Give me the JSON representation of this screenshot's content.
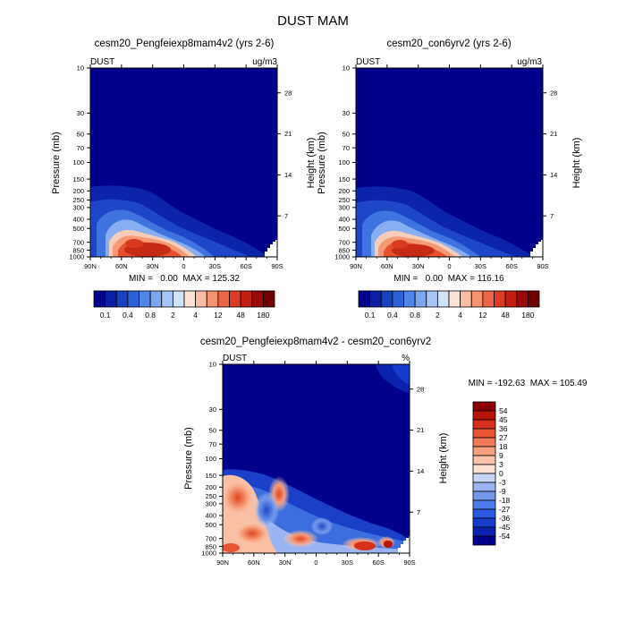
{
  "figure": {
    "title": "DUST MAM"
  },
  "chart_data": [
    {
      "type": "heatmap",
      "title": "cesm20_Pengfeiexp8mam4v2 (yrs 2-6)",
      "left_label": "DUST",
      "right_label": "ug/m3",
      "xlabel": "",
      "ylabel": "Pressure (mb)",
      "ylabel_right": "Height (km)",
      "x_ticks": [
        "90N",
        "60N",
        "30N",
        "0",
        "30S",
        "60S",
        "90S"
      ],
      "y_ticks": [
        "10",
        "30",
        "50",
        "70",
        "100",
        "150",
        "200",
        "250",
        "300",
        "400",
        "500",
        "700",
        "850",
        "1000"
      ],
      "y_ticks_right": [
        "28",
        "21",
        "14",
        "7"
      ],
      "ylim": [
        1000,
        10
      ],
      "stats": "MIN =   0.00  MAX = 125.32"
    },
    {
      "type": "heatmap",
      "title": "cesm20_con6yrv2 (yrs 2-6)",
      "left_label": "DUST",
      "right_label": "ug/m3",
      "xlabel": "",
      "ylabel": "Pressure (mb)",
      "ylabel_right": "Height (km)",
      "x_ticks": [
        "90N",
        "60N",
        "30N",
        "0",
        "30S",
        "60S",
        "90S"
      ],
      "y_ticks": [
        "10",
        "30",
        "50",
        "70",
        "100",
        "150",
        "200",
        "250",
        "300",
        "400",
        "500",
        "700",
        "850",
        "1000"
      ],
      "y_ticks_right": [
        "28",
        "21",
        "14",
        "7"
      ],
      "ylim": [
        1000,
        10
      ],
      "stats": "MIN =   0.00  MAX = 116.16"
    },
    {
      "type": "heatmap",
      "title": "cesm20_Pengfeiexp8mam4v2 - cesm20_con6yrv2",
      "left_label": "DUST",
      "right_label": "%",
      "xlabel": "",
      "ylabel": "Pressure (mb)",
      "ylabel_right": "Height (km)",
      "x_ticks": [
        "90N",
        "60N",
        "30N",
        "0",
        "30S",
        "60S",
        "90S"
      ],
      "y_ticks": [
        "10",
        "30",
        "50",
        "70",
        "100",
        "150",
        "200",
        "250",
        "300",
        "400",
        "500",
        "700",
        "850",
        "1000"
      ],
      "y_ticks_right": [
        "28",
        "21",
        "14",
        "7"
      ],
      "ylim": [
        1000,
        10
      ],
      "stats": "MIN = -192.63  MAX = 105.49"
    }
  ],
  "colorbar_top": {
    "colors": [
      "#00008b",
      "#0a1fa5",
      "#1742c4",
      "#2a63d8",
      "#4f86e8",
      "#7aa7f0",
      "#a6c6f5",
      "#d0e3f9",
      "#fde3d6",
      "#f9bda3",
      "#f49372",
      "#ee6545",
      "#de3b22",
      "#c01f12",
      "#9a0a06",
      "#700000"
    ],
    "labels": [
      "0.1",
      "0.4",
      "0.8",
      "2",
      "4",
      "12",
      "48",
      "180"
    ],
    "values": [
      0.05,
      0.1,
      0.2,
      0.4,
      0.6,
      0.8,
      1,
      2,
      3,
      4,
      8,
      12,
      24,
      48,
      96,
      180
    ]
  },
  "colorbar_diff": {
    "colors": [
      "#00008b",
      "#0a22ad",
      "#163ccc",
      "#2b5ae2",
      "#4d7be9",
      "#7398ee",
      "#9ab4f3",
      "#c5d6f7",
      "#fde1d2",
      "#fac2a8",
      "#f7a07d",
      "#f27b57",
      "#e95433",
      "#d6301c",
      "#b71508",
      "#8b0000"
    ],
    "labels": [
      "-54",
      "-45",
      "-36",
      "-27",
      "-18",
      "-9",
      "-3",
      "0",
      "3",
      "9",
      "18",
      "27",
      "36",
      "45",
      "54"
    ],
    "values": [
      -54,
      -45,
      -36,
      -27,
      -18,
      -9,
      -3,
      0,
      3,
      9,
      18,
      27,
      36,
      45,
      54
    ]
  }
}
